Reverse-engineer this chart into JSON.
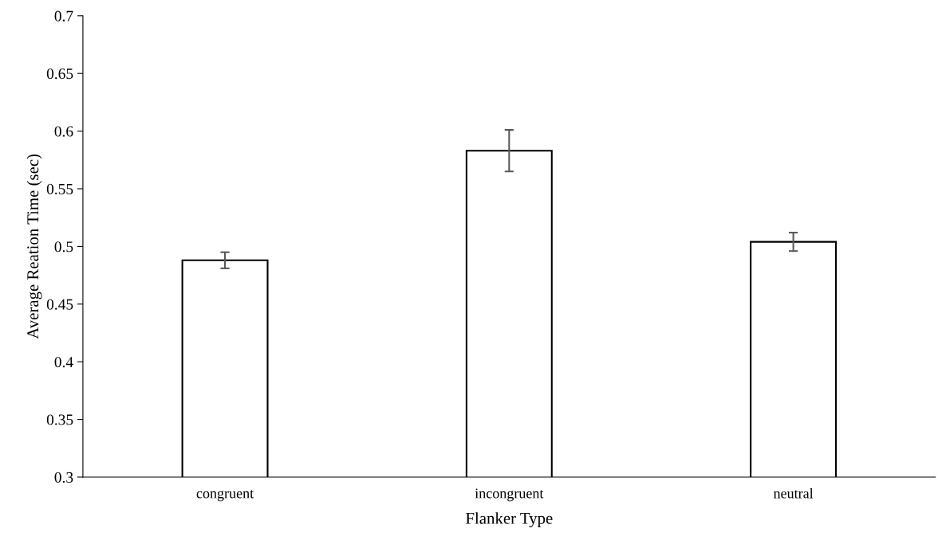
{
  "chart_data": {
    "type": "bar",
    "xlabel": "Flanker Type",
    "ylabel": "Average Reation Time (sec)",
    "categories": [
      "congruent",
      "incongruent",
      "neutral"
    ],
    "values": [
      0.488,
      0.583,
      0.504
    ],
    "errors": [
      0.007,
      0.018,
      0.008
    ],
    "color": "#ffffff",
    "ylim": [
      0.3,
      0.7
    ],
    "yticks": [
      0.3,
      0.35,
      0.4,
      0.45,
      0.5,
      0.55,
      0.6,
      0.65,
      0.7
    ],
    "grid": false,
    "legend": false
  }
}
